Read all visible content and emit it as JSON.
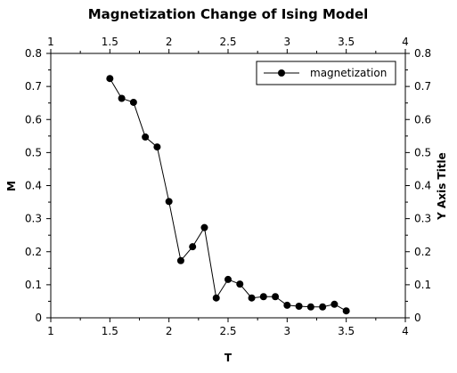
{
  "chart_data": {
    "type": "line",
    "title": "Magnetization Change of Ising Model",
    "xlabel": "T",
    "ylabel": "M",
    "y2label": "Y Axis Title",
    "xlim": [
      1,
      4
    ],
    "ylim": [
      0,
      0.8
    ],
    "xticks": [
      "1",
      "1.5",
      "2",
      "2.5",
      "3",
      "3.5",
      "4"
    ],
    "yticks": [
      "0",
      "0.1",
      "0.2",
      "0.3",
      "0.4",
      "0.5",
      "0.6",
      "0.7",
      "0.8"
    ],
    "legend_position": "top-right",
    "grid": false,
    "series": [
      {
        "name": "magnetization",
        "color": "#000000",
        "marker": "filled-circle",
        "x": [
          1.5,
          1.6,
          1.7,
          1.8,
          1.9,
          2.0,
          2.1,
          2.2,
          2.3,
          2.4,
          2.5,
          2.6,
          2.7,
          2.8,
          2.9,
          3.0,
          3.1,
          3.2,
          3.3,
          3.4,
          3.5
        ],
        "y": [
          0.724,
          0.664,
          0.652,
          0.547,
          0.517,
          0.352,
          0.173,
          0.215,
          0.273,
          0.06,
          0.116,
          0.102,
          0.06,
          0.064,
          0.064,
          0.038,
          0.035,
          0.033,
          0.033,
          0.041,
          0.021
        ]
      }
    ]
  }
}
